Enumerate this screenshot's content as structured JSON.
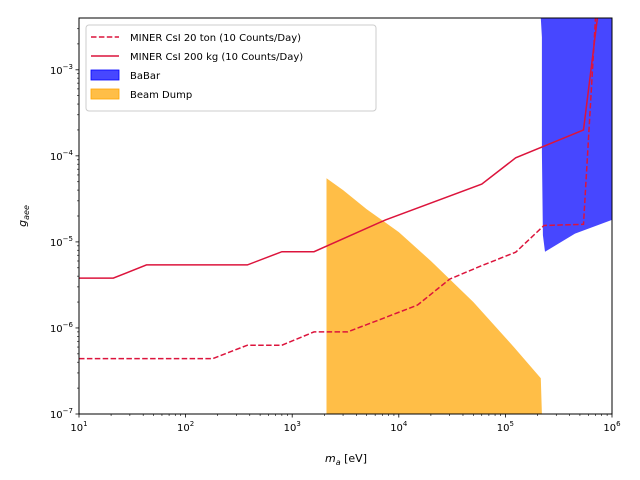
{
  "chart_data": {
    "type": "area",
    "xscale": "log",
    "yscale": "log",
    "xlim": [
      10,
      1000000
    ],
    "ylim": [
      1e-07,
      0.004
    ],
    "xlabel_main": "m",
    "xlabel_sub": "a",
    "xlabel_unit": " [eV]",
    "ylabel_main": "g",
    "ylabel_sub": "aee",
    "legend_position": "top-left",
    "x_ticks": [
      {
        "value": 10,
        "base": "10",
        "exp": "1"
      },
      {
        "value": 100,
        "base": "10",
        "exp": "2"
      },
      {
        "value": 1000,
        "base": "10",
        "exp": "3"
      },
      {
        "value": 10000,
        "base": "10",
        "exp": "4"
      },
      {
        "value": 100000,
        "base": "10",
        "exp": "5"
      },
      {
        "value": 1000000,
        "base": "10",
        "exp": "6"
      }
    ],
    "y_ticks": [
      {
        "value": 1e-07,
        "base": "10",
        "exp": "−7"
      },
      {
        "value": 1e-06,
        "base": "10",
        "exp": "−6"
      },
      {
        "value": 1e-05,
        "base": "10",
        "exp": "−5"
      },
      {
        "value": 0.0001,
        "base": "10",
        "exp": "−4"
      },
      {
        "value": 0.001,
        "base": "10",
        "exp": "−3"
      }
    ],
    "series": [
      {
        "name": "MINER CsI 20 ton (10 Counts/Day)",
        "kind": "line",
        "style": "dashed",
        "color": "#dc143c",
        "x": [
          10,
          180,
          380,
          800,
          1600,
          3300,
          7000,
          15000,
          30000,
          60000,
          125000,
          230000,
          540000,
          700000
        ],
        "y": [
          4.4e-07,
          4.4e-07,
          6.3e-07,
          6.3e-07,
          9e-07,
          9e-07,
          1.28e-06,
          1.85e-06,
          3.7e-06,
          5.3e-06,
          7.6e-06,
          1.55e-05,
          1.6e-05,
          0.004
        ]
      },
      {
        "name": "MINER CsI 200 kg (10 Counts/Day)",
        "kind": "line",
        "style": "solid",
        "color": "#dc143c",
        "x": [
          10,
          21,
          43,
          380,
          800,
          1600,
          7500,
          60000,
          125000,
          540000,
          730000
        ],
        "y": [
          3.8e-06,
          3.8e-06,
          5.4e-06,
          5.4e-06,
          7.7e-06,
          7.7e-06,
          1.8e-05,
          4.7e-05,
          9.5e-05,
          0.0002,
          0.004
        ]
      },
      {
        "name": "BaBar",
        "kind": "area",
        "color": "#0000ff",
        "x": [
          215000,
          220000,
          220000,
          225000,
          235000,
          450000,
          1000000,
          1000000
        ],
        "y": [
          0.004,
          0.0024,
          0.00011,
          1.2e-05,
          7.7e-06,
          1.25e-05,
          1.8e-05,
          0.004
        ]
      },
      {
        "name": "Beam Dump",
        "kind": "area",
        "color": "#ffa500",
        "x": [
          2100,
          2100,
          3000,
          5000,
          10000,
          20000,
          50000,
          120000,
          215000,
          220000
        ],
        "y": [
          1e-07,
          5.5e-05,
          4e-05,
          2.4e-05,
          1.3e-05,
          6e-06,
          2e-06,
          6e-07,
          2.6e-07,
          1e-07
        ]
      }
    ]
  }
}
